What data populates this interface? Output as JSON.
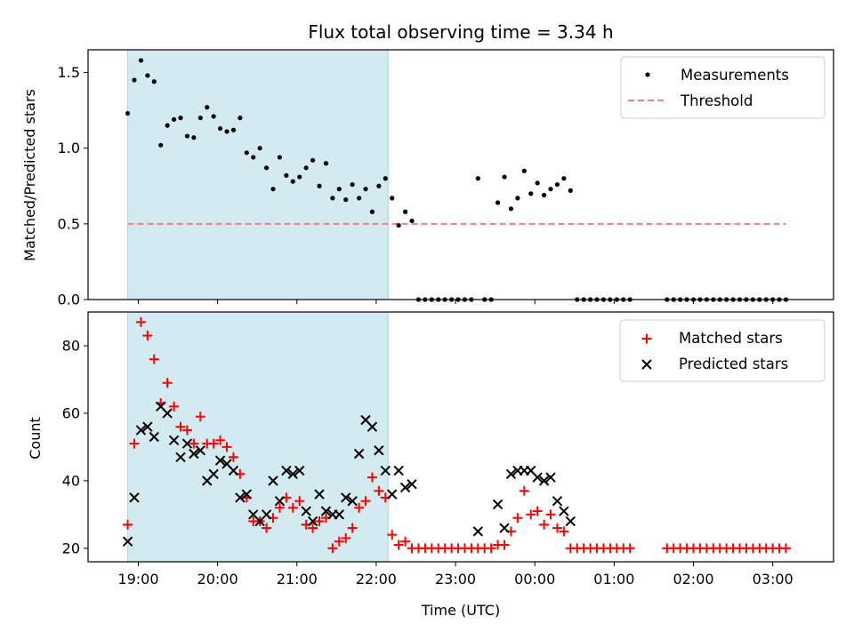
{
  "title": "Flux total observing time = 3.34 h",
  "colors": {
    "shade": "#d3eaf0",
    "shade_edge": "#a9d6e2",
    "threshold": "#f08080",
    "matched": "#ff0000",
    "predicted": "#000000",
    "measurement": "#000000"
  },
  "chart_data": [
    {
      "type": "scatter",
      "ylabel": "Matched/Predicted stars",
      "xlabel": "",
      "ylim": [
        0,
        1.65
      ],
      "xlim": [
        "18:22",
        "03:46"
      ],
      "yticks": [
        0.0,
        0.5,
        1.0,
        1.5
      ],
      "shaded_interval": [
        "18:52",
        "22:09"
      ],
      "legend_position": "upper right",
      "legend": {
        "measurements": "Measurements",
        "threshold": "Threshold"
      },
      "threshold": {
        "value": 0.5,
        "from": "18:52",
        "to": "03:10"
      },
      "measurements": [
        [
          "18:52",
          1.23
        ],
        [
          "18:57",
          1.45
        ],
        [
          "19:02",
          1.58
        ],
        [
          "19:07",
          1.48
        ],
        [
          "19:12",
          1.44
        ],
        [
          "19:17",
          1.02
        ],
        [
          "19:22",
          1.15
        ],
        [
          "19:27",
          1.19
        ],
        [
          "19:32",
          1.2
        ],
        [
          "19:37",
          1.08
        ],
        [
          "19:42",
          1.07
        ],
        [
          "19:47",
          1.2
        ],
        [
          "19:52",
          1.27
        ],
        [
          "19:57",
          1.21
        ],
        [
          "20:02",
          1.13
        ],
        [
          "20:07",
          1.11
        ],
        [
          "20:12",
          1.12
        ],
        [
          "20:17",
          1.2
        ],
        [
          "20:22",
          0.97
        ],
        [
          "20:27",
          0.94
        ],
        [
          "20:32",
          1.0
        ],
        [
          "20:37",
          0.87
        ],
        [
          "20:42",
          0.73
        ],
        [
          "20:47",
          0.94
        ],
        [
          "20:52",
          0.82
        ],
        [
          "20:57",
          0.78
        ],
        [
          "21:02",
          0.81
        ],
        [
          "21:07",
          0.87
        ],
        [
          "21:12",
          0.92
        ],
        [
          "21:17",
          0.75
        ],
        [
          "21:22",
          0.9
        ],
        [
          "21:27",
          0.67
        ],
        [
          "21:32",
          0.73
        ],
        [
          "21:37",
          0.66
        ],
        [
          "21:42",
          0.76
        ],
        [
          "21:47",
          0.67
        ],
        [
          "21:52",
          0.73
        ],
        [
          "21:57",
          0.58
        ],
        [
          "22:02",
          0.75
        ],
        [
          "22:07",
          0.8
        ],
        [
          "22:12",
          0.67
        ],
        [
          "22:17",
          0.49
        ],
        [
          "22:22",
          0.58
        ],
        [
          "22:27",
          0.52
        ],
        [
          "22:32",
          0
        ],
        [
          "22:37",
          0
        ],
        [
          "22:42",
          0
        ],
        [
          "22:47",
          0
        ],
        [
          "22:52",
          0
        ],
        [
          "22:57",
          0
        ],
        [
          "23:02",
          0
        ],
        [
          "23:07",
          0
        ],
        [
          "23:12",
          0
        ],
        [
          "23:17",
          0.8
        ],
        [
          "23:22",
          0
        ],
        [
          "23:27",
          0
        ],
        [
          "23:32",
          0.64
        ],
        [
          "23:37",
          0.81
        ],
        [
          "23:42",
          0.6
        ],
        [
          "23:47",
          0.67
        ],
        [
          "23:52",
          0.85
        ],
        [
          "23:57",
          0.7
        ],
        [
          "00:02",
          0.77
        ],
        [
          "00:07",
          0.69
        ],
        [
          "00:12",
          0.73
        ],
        [
          "00:17",
          0.76
        ],
        [
          "00:22",
          0.8
        ],
        [
          "00:27",
          0.72
        ],
        [
          "00:32",
          0
        ],
        [
          "00:37",
          0
        ],
        [
          "00:42",
          0
        ],
        [
          "00:47",
          0
        ],
        [
          "00:52",
          0
        ],
        [
          "00:57",
          0
        ],
        [
          "01:02",
          0
        ],
        [
          "01:07",
          0
        ],
        [
          "01:12",
          0
        ],
        [
          "01:40",
          0
        ],
        [
          "01:45",
          0
        ],
        [
          "01:50",
          0
        ],
        [
          "01:55",
          0
        ],
        [
          "02:00",
          0
        ],
        [
          "02:05",
          0
        ],
        [
          "02:10",
          0
        ],
        [
          "02:15",
          0
        ],
        [
          "02:20",
          0
        ],
        [
          "02:25",
          0
        ],
        [
          "02:30",
          0
        ],
        [
          "02:35",
          0
        ],
        [
          "02:40",
          0
        ],
        [
          "02:45",
          0
        ],
        [
          "02:50",
          0
        ],
        [
          "02:55",
          0
        ],
        [
          "03:00",
          0
        ],
        [
          "03:05",
          0
        ],
        [
          "03:10",
          0
        ]
      ]
    },
    {
      "type": "scatter",
      "ylabel": "Count",
      "xlabel": "Time (UTC)",
      "ylim": [
        16,
        90
      ],
      "xlim": [
        "18:22",
        "03:46"
      ],
      "yticks": [
        20,
        40,
        60,
        80
      ],
      "xticks": [
        "19:00",
        "20:00",
        "21:00",
        "22:00",
        "23:00",
        "00:00",
        "01:00",
        "02:00",
        "03:00"
      ],
      "shaded_interval": [
        "18:52",
        "22:09"
      ],
      "legend_position": "upper right",
      "series": [
        {
          "name": "Matched stars",
          "marker": "+",
          "points": [
            [
              "18:52",
              27
            ],
            [
              "18:57",
              51
            ],
            [
              "19:02",
              87
            ],
            [
              "19:07",
              83
            ],
            [
              "19:12",
              76
            ],
            [
              "19:17",
              63
            ],
            [
              "19:22",
              69
            ],
            [
              "19:27",
              62
            ],
            [
              "19:32",
              56
            ],
            [
              "19:37",
              55
            ],
            [
              "19:42",
              51
            ],
            [
              "19:47",
              59
            ],
            [
              "19:52",
              51
            ],
            [
              "19:57",
              51
            ],
            [
              "20:02",
              52
            ],
            [
              "20:07",
              50
            ],
            [
              "20:12",
              47
            ],
            [
              "20:17",
              42
            ],
            [
              "20:22",
              35
            ],
            [
              "20:27",
              28
            ],
            [
              "20:32",
              28
            ],
            [
              "20:37",
              26
            ],
            [
              "20:42",
              29
            ],
            [
              "20:47",
              32
            ],
            [
              "20:52",
              35
            ],
            [
              "20:57",
              32
            ],
            [
              "21:02",
              34
            ],
            [
              "21:07",
              27
            ],
            [
              "21:12",
              26
            ],
            [
              "21:17",
              28
            ],
            [
              "21:22",
              29
            ],
            [
              "21:27",
              20
            ],
            [
              "21:32",
              22
            ],
            [
              "21:37",
              23
            ],
            [
              "21:42",
              26
            ],
            [
              "21:47",
              32
            ],
            [
              "21:52",
              34
            ],
            [
              "21:57",
              41
            ],
            [
              "22:02",
              37
            ],
            [
              "22:07",
              35
            ],
            [
              "22:12",
              24
            ],
            [
              "22:17",
              21
            ],
            [
              "22:22",
              22
            ],
            [
              "22:27",
              20
            ],
            [
              "22:32",
              20
            ],
            [
              "22:37",
              20
            ],
            [
              "22:42",
              20
            ],
            [
              "22:47",
              20
            ],
            [
              "22:52",
              20
            ],
            [
              "22:57",
              20
            ],
            [
              "23:02",
              20
            ],
            [
              "23:07",
              20
            ],
            [
              "23:12",
              20
            ],
            [
              "23:17",
              20
            ],
            [
              "23:22",
              20
            ],
            [
              "23:27",
              20
            ],
            [
              "23:32",
              21
            ],
            [
              "23:37",
              21
            ],
            [
              "23:42",
              25
            ],
            [
              "23:47",
              29
            ],
            [
              "23:52",
              37
            ],
            [
              "23:57",
              30
            ],
            [
              "00:02",
              31
            ],
            [
              "00:07",
              27
            ],
            [
              "00:12",
              30
            ],
            [
              "00:17",
              26
            ],
            [
              "00:22",
              25
            ],
            [
              "00:27",
              20
            ],
            [
              "00:32",
              20
            ],
            [
              "00:37",
              20
            ],
            [
              "00:42",
              20
            ],
            [
              "00:47",
              20
            ],
            [
              "00:52",
              20
            ],
            [
              "00:57",
              20
            ],
            [
              "01:02",
              20
            ],
            [
              "01:07",
              20
            ],
            [
              "01:12",
              20
            ],
            [
              "01:40",
              20
            ],
            [
              "01:45",
              20
            ],
            [
              "01:50",
              20
            ],
            [
              "01:55",
              20
            ],
            [
              "02:00",
              20
            ],
            [
              "02:05",
              20
            ],
            [
              "02:10",
              20
            ],
            [
              "02:15",
              20
            ],
            [
              "02:20",
              20
            ],
            [
              "02:25",
              20
            ],
            [
              "02:30",
              20
            ],
            [
              "02:35",
              20
            ],
            [
              "02:40",
              20
            ],
            [
              "02:45",
              20
            ],
            [
              "02:50",
              20
            ],
            [
              "02:55",
              20
            ],
            [
              "03:00",
              20
            ],
            [
              "03:05",
              20
            ],
            [
              "03:10",
              20
            ]
          ]
        },
        {
          "name": "Predicted stars",
          "marker": "x",
          "points": [
            [
              "18:52",
              22
            ],
            [
              "18:57",
              35
            ],
            [
              "19:02",
              55
            ],
            [
              "19:07",
              56
            ],
            [
              "19:12",
              53
            ],
            [
              "19:17",
              62
            ],
            [
              "19:22",
              60
            ],
            [
              "19:27",
              52
            ],
            [
              "19:32",
              47
            ],
            [
              "19:37",
              51
            ],
            [
              "19:42",
              48
            ],
            [
              "19:47",
              49
            ],
            [
              "19:52",
              40
            ],
            [
              "19:57",
              42
            ],
            [
              "20:02",
              46
            ],
            [
              "20:07",
              45
            ],
            [
              "20:12",
              43
            ],
            [
              "20:17",
              35
            ],
            [
              "20:22",
              36
            ],
            [
              "20:27",
              30
            ],
            [
              "20:32",
              28
            ],
            [
              "20:37",
              30
            ],
            [
              "20:42",
              40
            ],
            [
              "20:47",
              34
            ],
            [
              "20:52",
              43
            ],
            [
              "20:57",
              42
            ],
            [
              "21:02",
              43
            ],
            [
              "21:07",
              31
            ],
            [
              "21:12",
              28
            ],
            [
              "21:17",
              36
            ],
            [
              "21:22",
              31
            ],
            [
              "21:27",
              30
            ],
            [
              "21:32",
              30
            ],
            [
              "21:37",
              35
            ],
            [
              "21:42",
              34
            ],
            [
              "21:47",
              48
            ],
            [
              "21:52",
              58
            ],
            [
              "21:57",
              56
            ],
            [
              "22:02",
              49
            ],
            [
              "22:07",
              43
            ],
            [
              "22:12",
              36
            ],
            [
              "22:17",
              43
            ],
            [
              "22:22",
              38
            ],
            [
              "22:27",
              39
            ],
            [
              "23:17",
              25
            ],
            [
              "23:32",
              33
            ],
            [
              "23:37",
              26
            ],
            [
              "23:42",
              42
            ],
            [
              "23:47",
              43
            ],
            [
              "23:52",
              43
            ],
            [
              "23:57",
              43
            ],
            [
              "00:02",
              41
            ],
            [
              "00:07",
              40
            ],
            [
              "00:12",
              41
            ],
            [
              "00:17",
              34
            ],
            [
              "00:22",
              31
            ],
            [
              "00:27",
              28
            ]
          ]
        }
      ]
    }
  ]
}
